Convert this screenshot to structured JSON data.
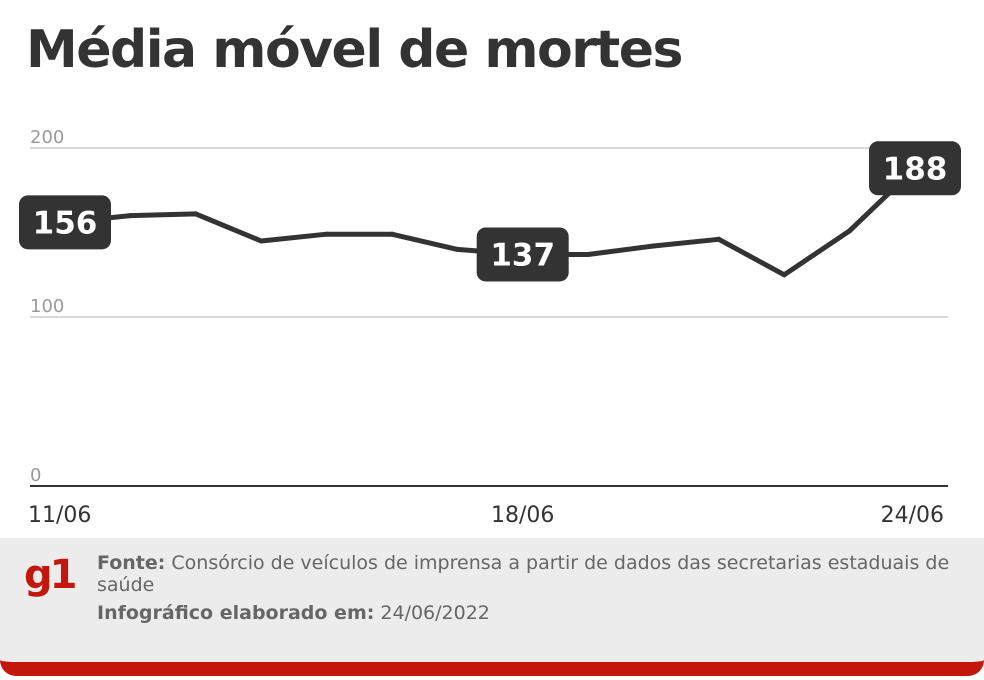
{
  "header": {
    "title": "Média móvel de mortes"
  },
  "chart_data": {
    "type": "line",
    "title": "Média móvel de mortes",
    "x": [
      "11/06",
      "12/06",
      "13/06",
      "14/06",
      "15/06",
      "16/06",
      "17/06",
      "18/06",
      "19/06",
      "20/06",
      "21/06",
      "22/06",
      "23/06",
      "24/06"
    ],
    "values": [
      156,
      160,
      161,
      145,
      149,
      149,
      140,
      137,
      137,
      142,
      146,
      125,
      151,
      188
    ],
    "x_tick_labels": [
      "11/06",
      "18/06",
      "24/06"
    ],
    "y_ticks": [
      0,
      100,
      200
    ],
    "ylim": [
      0,
      200
    ],
    "grid": true,
    "legend": "none",
    "xlabel": "",
    "ylabel": "",
    "highlighted_labels": [
      {
        "x": "11/06",
        "value": 156
      },
      {
        "x": "18/06",
        "value": 137
      },
      {
        "x": "24/06",
        "value": 188
      }
    ],
    "line_color": "#333333",
    "grid_color": "#cccccc",
    "label_bg_color": "#333333",
    "label_text_color": "#ffffff"
  },
  "footer": {
    "logo_text": "g1",
    "source_label": "Fonte:",
    "source_text": "Consórcio de veículos de imprensa a partir de dados das secretarias estaduais de saúde",
    "credit_label": "Infográfico elaborado em:",
    "credit_date": "24/06/2022",
    "brand_color": "#c4170c",
    "panel_color": "#ececec"
  }
}
